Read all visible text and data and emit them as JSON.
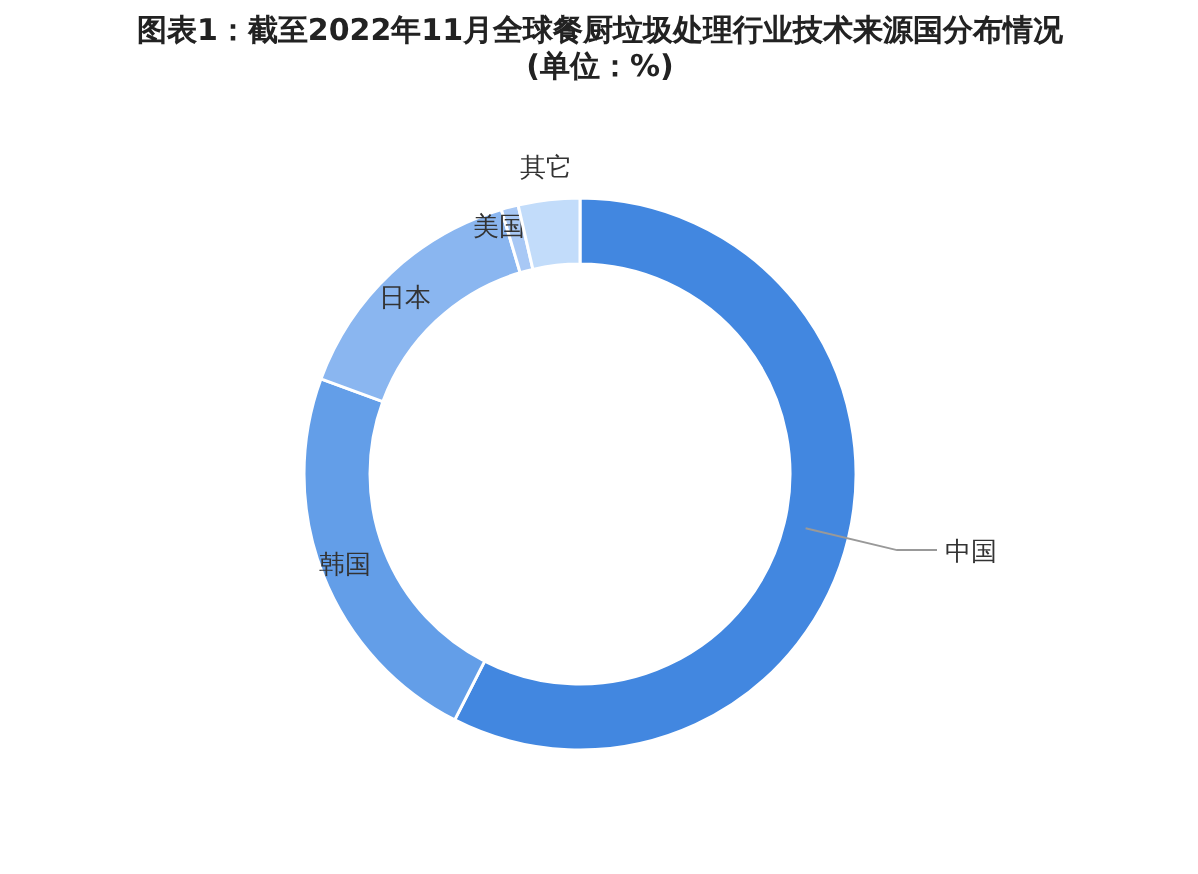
{
  "chart_data": {
    "type": "donut",
    "title": "图表1：截至2022年11月全球餐厨垃圾处理行业技术来源国分布情况(单位：%)",
    "categories": [
      "中国",
      "韩国",
      "日本",
      "美国",
      "其它"
    ],
    "values": [
      57.5,
      23.1,
      14.8,
      1.0,
      3.6
    ],
    "colors": [
      "#4287e0",
      "#639ee8",
      "#8ab6f0",
      "#a8c8f5",
      "#c2dcfa"
    ]
  }
}
